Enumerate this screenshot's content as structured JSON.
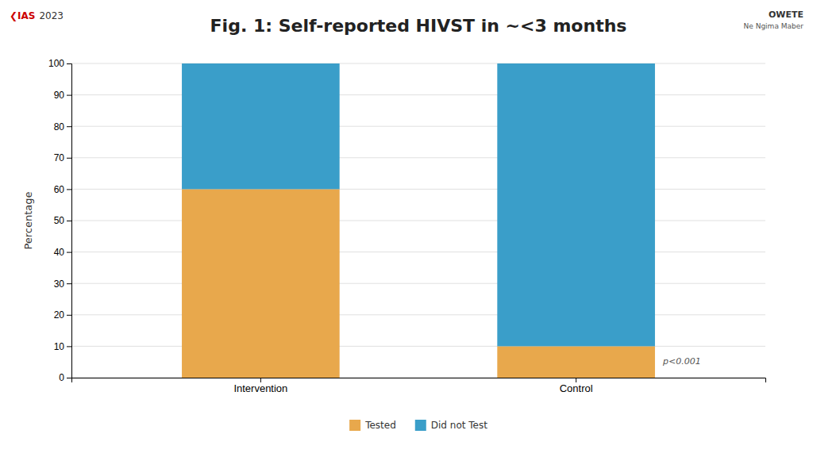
{
  "chart_data": {
    "type": "bar",
    "title": "Fig. 1: Self-reported HIVST in ~<3 months",
    "ylabel": "Percentage",
    "categories": [
      "Intervention",
      "Control"
    ],
    "series": [
      {
        "name": "Tested",
        "color": "#E8A84C",
        "values": [
          60,
          10
        ]
      },
      {
        "name": "Did not Test",
        "color": "#3A9EC9",
        "values": [
          40,
          90
        ]
      }
    ],
    "stacked": true,
    "ylim": [
      0,
      100
    ],
    "yticks": [
      0,
      10,
      20,
      30,
      40,
      50,
      60,
      70,
      80,
      90,
      100
    ],
    "grid": true,
    "legend": "bottom",
    "annotations": [
      "p<0.001",
      "❮IAS",
      "2023",
      "OWETE",
      "Ne Ngima Maber"
    ]
  }
}
